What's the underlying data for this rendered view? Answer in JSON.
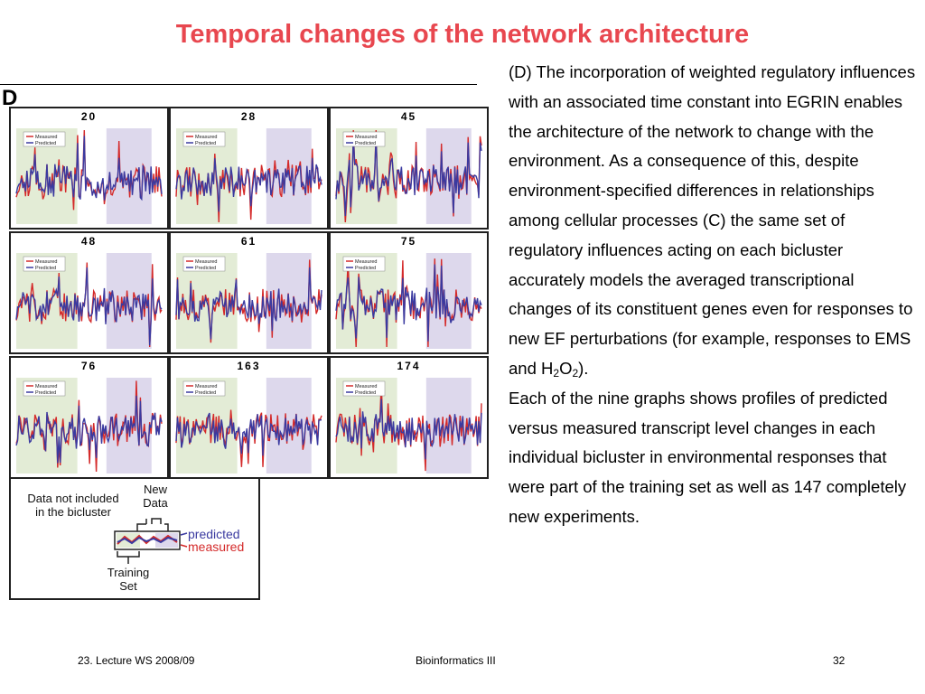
{
  "slide": {
    "title": "Temporal changes of the network architecture",
    "panel_letter": "D"
  },
  "figure": {
    "legend_measured": "Measured",
    "legend_predicted": "Predicted",
    "colors": {
      "measured": "#d42a2a",
      "predicted": "#3a3aa0",
      "training_bg": "#e3ecd6",
      "new_data_bg": "#ddd8ec"
    },
    "cells": [
      {
        "label": "20"
      },
      {
        "label": "28"
      },
      {
        "label": "45"
      },
      {
        "label": "48"
      },
      {
        "label": "61"
      },
      {
        "label": "75"
      },
      {
        "label": "76"
      },
      {
        "label": "163"
      },
      {
        "label": "174"
      }
    ]
  },
  "schematic": {
    "data_not_included_line1": "Data not included",
    "data_not_included_line2": "in the bicluster",
    "new_line1": "New",
    "new_line2": "Data",
    "predicted": "predicted",
    "measured": "measured",
    "training_line1": "Training",
    "training_line2": "Set"
  },
  "description": {
    "para1_main": "(D) The incorporation of weighted regulatory influences with an associated time constant into EGRIN enables the architecture of the network to change with the environment. As a consequence of this, despite environment-specified differences in relationships among cellular processes (C) the same set of regulatory influences acting on each bicluster accurately models the averaged transcriptional changes of its constituent genes even for responses to new EF perturbations (for example, responses to EMS and H",
    "sub1": "2",
    "mid": "O",
    "sub2": "2",
    "end": ").",
    "para2": "Each of the nine graphs shows profiles of predicted versus measured transcript level changes in each individual bicluster in environmental responses that were part of the training set as well as 147 completely new experiments."
  },
  "footer": {
    "left": "23. Lecture WS 2008/09",
    "center": "Bioinformatics III",
    "right": "32"
  }
}
